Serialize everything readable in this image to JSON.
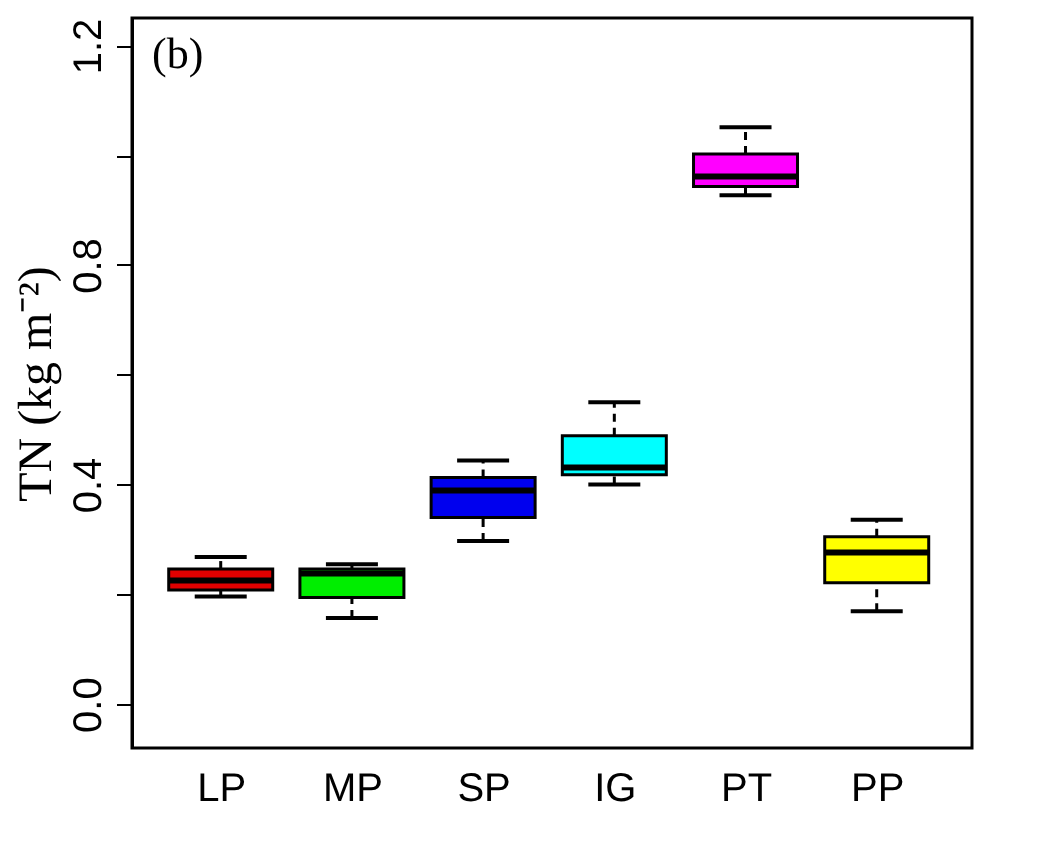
{
  "chart_data": {
    "type": "box",
    "ylabel": "TN (kg m⁻²)",
    "annotations": [
      "(b)"
    ],
    "categories": [
      "LP",
      "MP",
      "SP",
      "IG",
      "PT",
      "PP"
    ],
    "colors": [
      "#e00000",
      "#00ee00",
      "#0000ee",
      "#00ffff",
      "#ff00ff",
      "#ffff00"
    ],
    "boxes": [
      {
        "low": 0.196,
        "q1": 0.208,
        "median": 0.225,
        "q3": 0.246,
        "high": 0.268
      },
      {
        "low": 0.157,
        "q1": 0.194,
        "median": 0.238,
        "q3": 0.246,
        "high": 0.255
      },
      {
        "low": 0.297,
        "q1": 0.34,
        "median": 0.389,
        "q3": 0.413,
        "high": 0.444
      },
      {
        "low": 0.4,
        "q1": 0.418,
        "median": 0.431,
        "q3": 0.489,
        "high": 0.55
      },
      {
        "low": 0.927,
        "q1": 0.943,
        "median": 0.961,
        "q3": 1.002,
        "high": 1.051
      },
      {
        "low": 0.169,
        "q1": 0.221,
        "median": 0.276,
        "q3": 0.305,
        "high": 0.336
      }
    ],
    "ylim": [
      -0.08,
      1.25
    ],
    "yticks": [
      {
        "value": 0,
        "label": "0.0"
      },
      {
        "value": 0.2,
        "label": null
      },
      {
        "value": 0.4,
        "label": "0.4"
      },
      {
        "value": 0.6,
        "label": null
      },
      {
        "value": 0.8,
        "label": "0.8"
      },
      {
        "value": 1.0,
        "label": null
      },
      {
        "value": 1.2,
        "label": "1.2"
      }
    ],
    "grid": false
  }
}
